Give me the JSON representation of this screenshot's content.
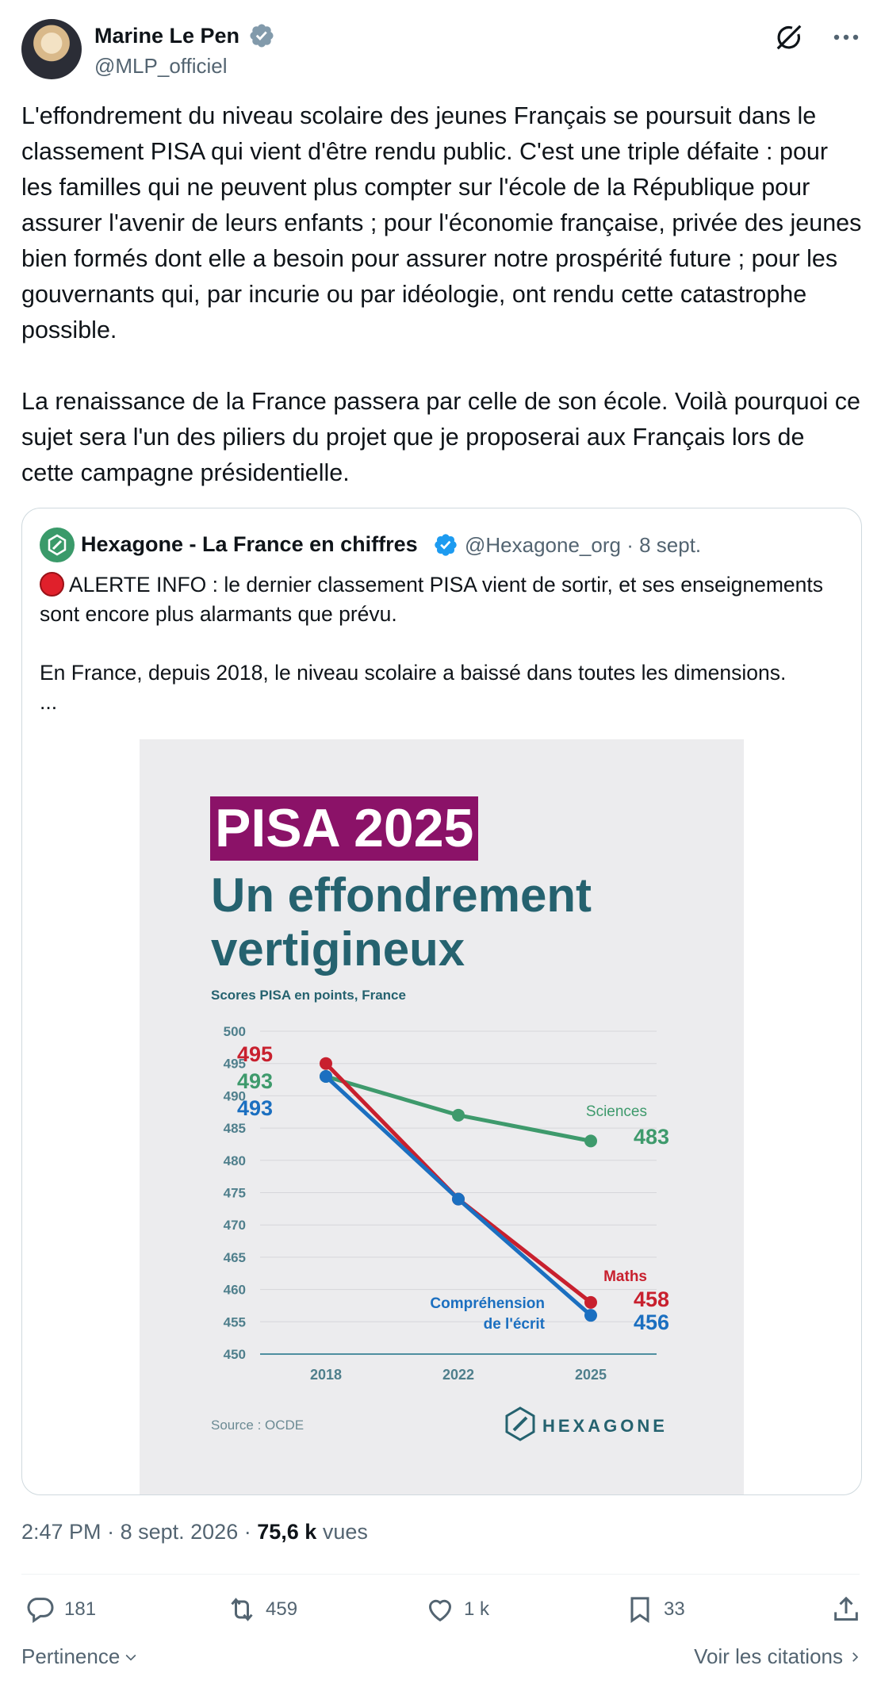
{
  "author": {
    "name": "Marine Le Pen",
    "handle": "@MLP_officiel"
  },
  "tweet": {
    "text": "L'effondrement du niveau scolaire des jeunes Français se poursuit dans le classement PISA qui vient d'être rendu public. C'est une triple défaite : pour les familles qui ne peuvent plus compter sur l'école de la République pour assurer l'avenir de leurs enfants ; pour l'économie française, privée des jeunes bien formés dont elle a besoin pour assurer notre prospérité future ; pour les gouvernants qui, par incurie ou par idéologie, ont rendu cette catastrophe possible.\n\nLa renaissance de la France passera par celle de son école. Voilà pourquoi ce sujet sera l'un des piliers du projet que je proposerai aux Français lors de cette campagne présidentielle."
  },
  "quote": {
    "name": "Hexagone - La France en chiffres",
    "handle": "@Hexagone_org",
    "date": "8 sept.",
    "separator": "·",
    "text_line1": "ALERTE INFO : le dernier classement PISA vient de sortir, et ses enseignements sont encore plus alarmants que prévu.",
    "text_line2": "En France, depuis 2018, le niveau scolaire a baissé dans toutes les dimensions.",
    "ellipsis": "...",
    "image": {
      "title": "PISA 2025",
      "headline_line1": "Un effondrement",
      "headline_line2": "vertigineux",
      "source": "Source : OCDE",
      "brand": "HEXAGONE"
    }
  },
  "chart_data": {
    "type": "line",
    "title": "",
    "ylabel": "Scores PISA en points, France",
    "x": [
      "2018",
      "2022",
      "2025"
    ],
    "ylim": [
      450,
      500
    ],
    "yticks": [
      500,
      495,
      490,
      485,
      480,
      475,
      470,
      465,
      460,
      455,
      450
    ],
    "series": [
      {
        "name": "Maths",
        "values": [
          495,
          474,
          458
        ],
        "color": "#c8202e"
      },
      {
        "name": "Compréhension de l'écrit",
        "values": [
          493,
          474,
          456
        ],
        "color": "#1b6fc0"
      },
      {
        "name": "Sciences",
        "values": [
          493,
          487,
          483
        ],
        "color": "#3e9a6c"
      }
    ],
    "annotations": {
      "start_maths": "495",
      "start_sciences": "493",
      "start_reading": "493",
      "end_sciences": "483",
      "end_maths": "458",
      "end_reading": "456",
      "label_sciences": "Sciences",
      "label_maths": "Maths",
      "label_reading_1": "Compréhension",
      "label_reading_2": "de l'écrit"
    }
  },
  "meta": {
    "time": "2:47 PM",
    "date": "8 sept. 2026",
    "views": "75,6 k",
    "views_label": "vues",
    "separator": "·"
  },
  "actions": {
    "replies": "181",
    "reposts": "459",
    "likes": "1 k",
    "bookmarks": "33"
  },
  "footer": {
    "sort_label": "Pertinence",
    "quotes_link": "Voir les citations"
  },
  "colors": {
    "text": "#0f1419",
    "secondary": "#536471",
    "verified": "#1d9bf0",
    "pisa_banner": "#8b1268",
    "headline": "#25626f"
  }
}
